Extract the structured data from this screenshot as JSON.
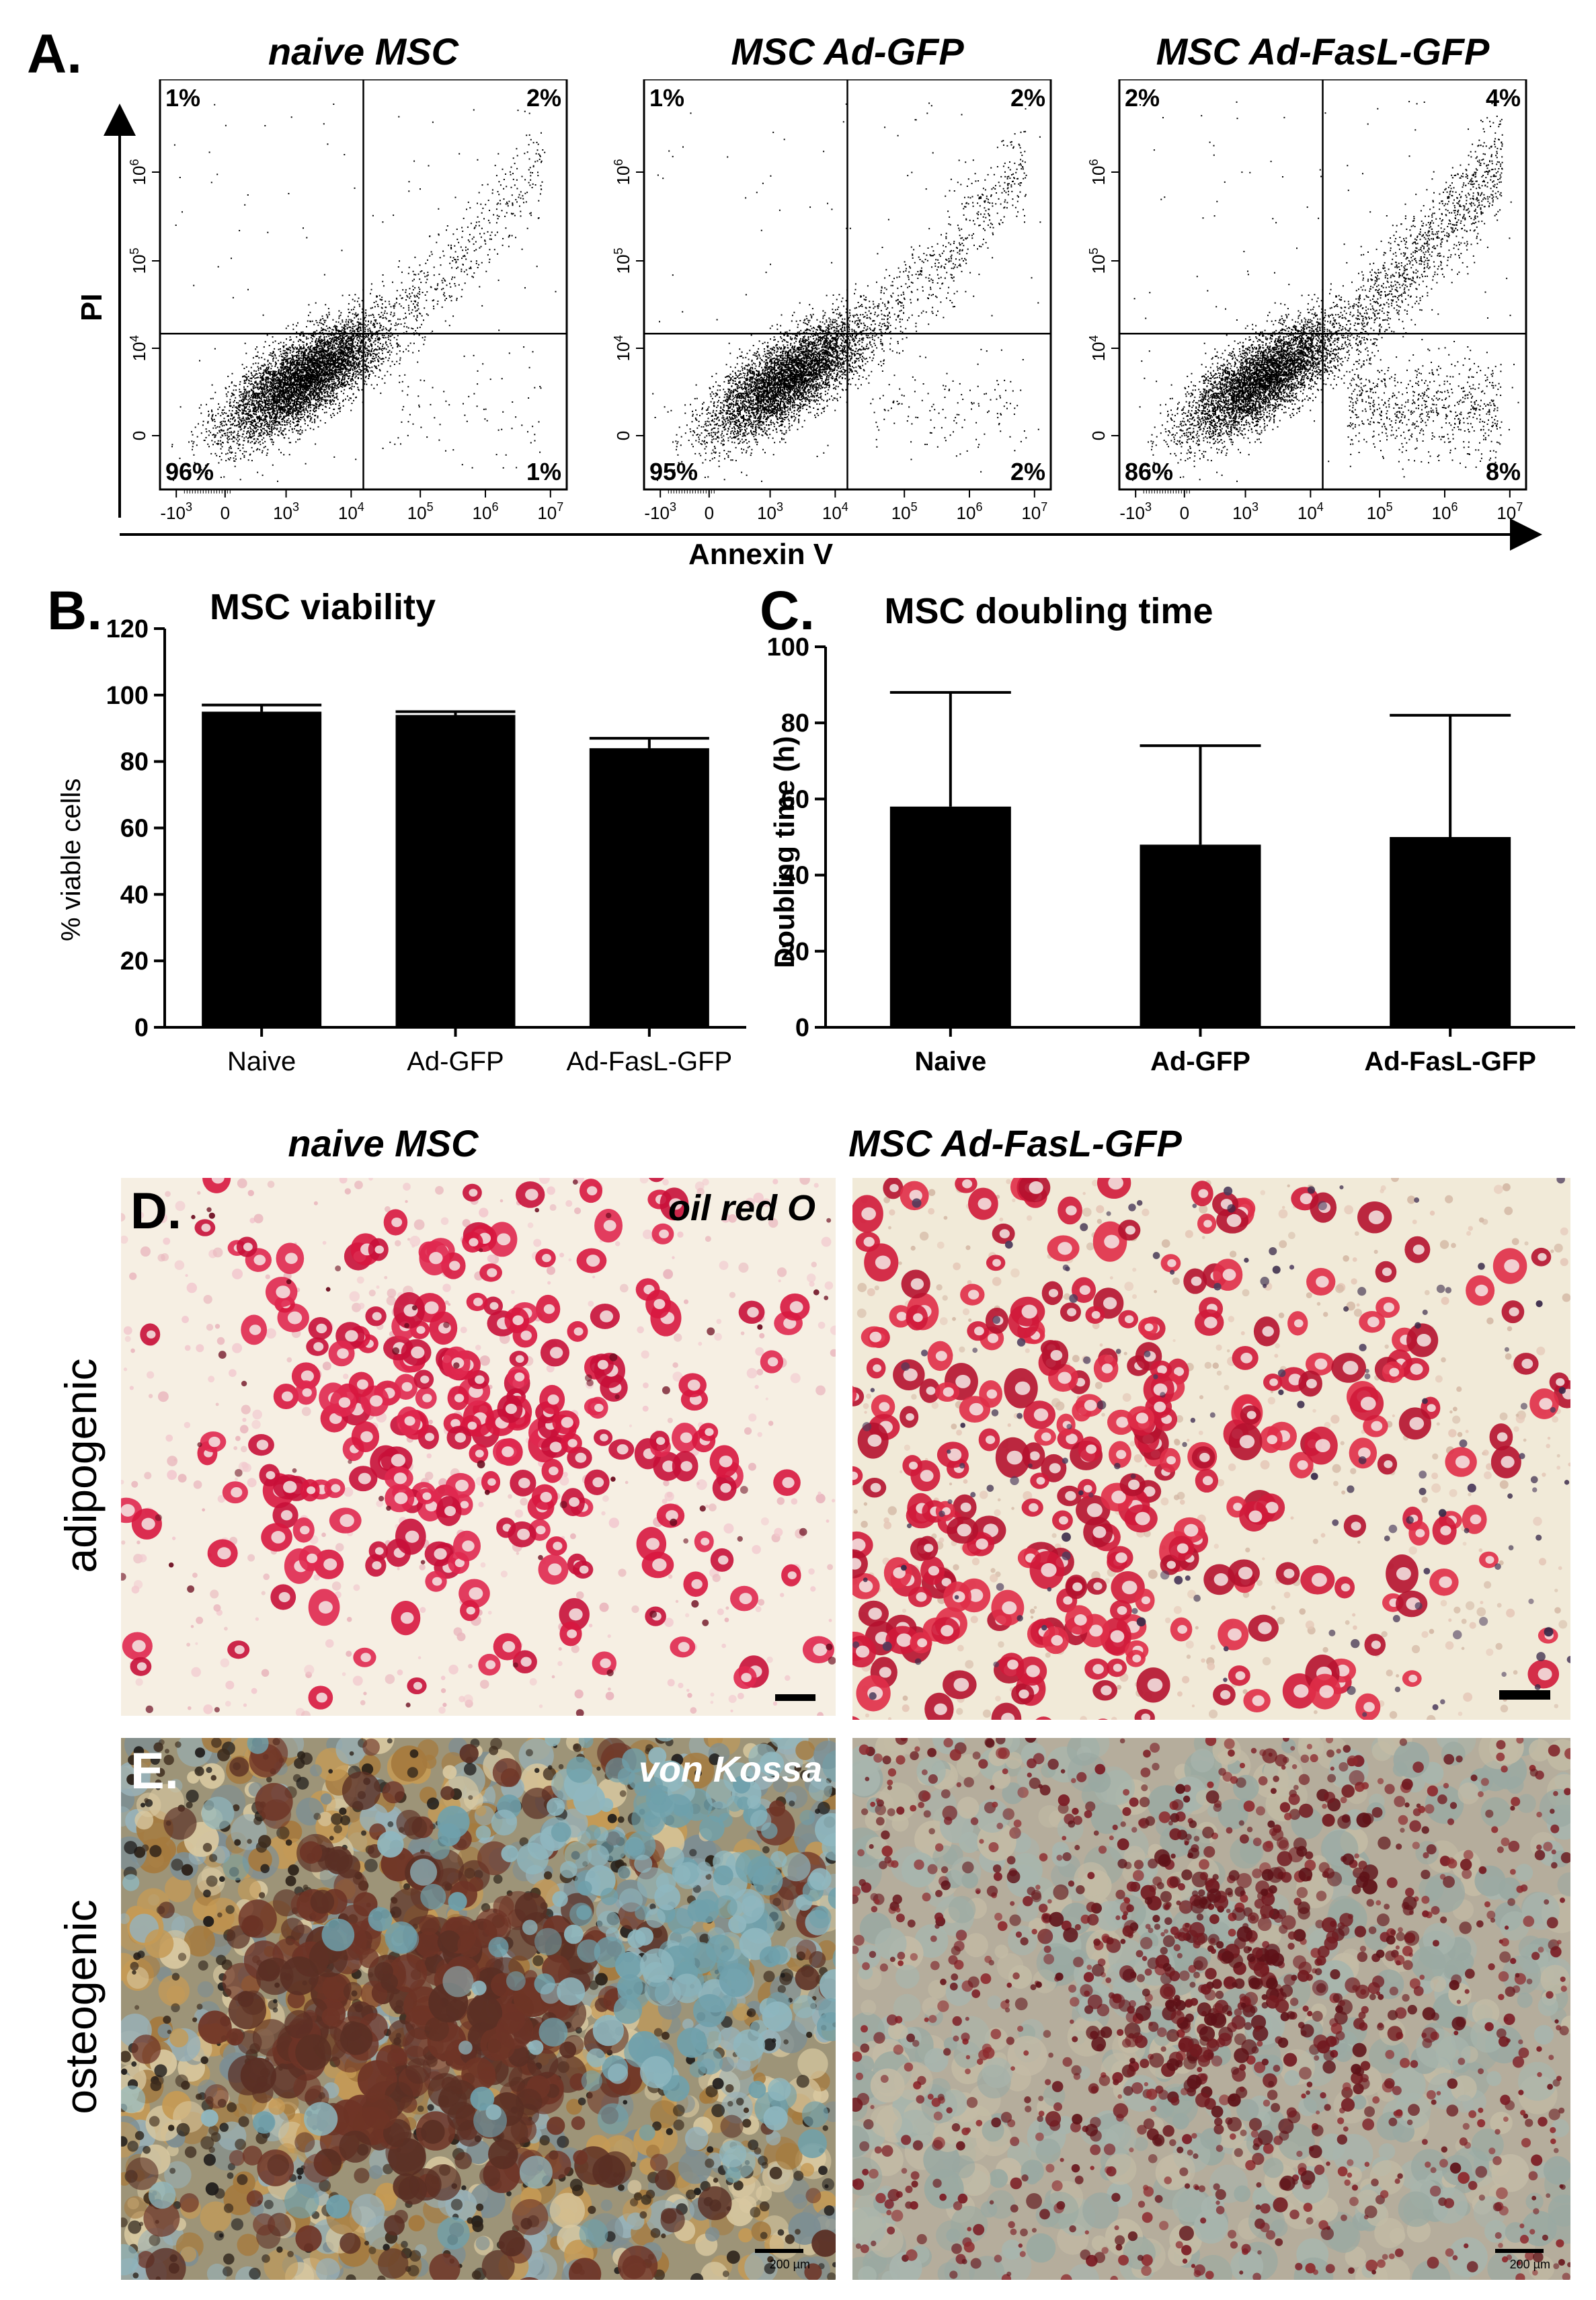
{
  "panel_a": {
    "letter": "A.",
    "y_axis_label": "PI",
    "x_axis_label": "Annexin V",
    "y_ticks": [
      "0",
      "10",
      "10",
      "10"
    ],
    "y_tick_exps": [
      "",
      "4",
      "5",
      "6"
    ],
    "x_ticks": [
      "-10",
      "0",
      "10",
      "10",
      "10",
      "10",
      "10"
    ],
    "x_tick_exps": [
      "3",
      "",
      "3",
      "4",
      "5",
      "6",
      "7"
    ],
    "plots": [
      {
        "title": "naive MSC",
        "ul": "1%",
        "ur": "2%",
        "ll": "96%",
        "lr": "1%"
      },
      {
        "title": "MSC Ad-GFP",
        "ul": "1%",
        "ur": "2%",
        "ll": "95%",
        "lr": "2%"
      },
      {
        "title": "MSC Ad-FasL-GFP",
        "ul": "2%",
        "ur": "4%",
        "ll": "86%",
        "lr": "8%"
      }
    ]
  },
  "chart_data": [
    {
      "type": "bar",
      "panel": "B.",
      "title": "MSC viability",
      "ylabel": "% viable cells",
      "xlabel": "",
      "categories": [
        "Naive",
        "Ad-GFP",
        "Ad-FasL-GFP"
      ],
      "values": [
        95,
        94,
        84
      ],
      "errors": [
        2,
        1,
        3
      ],
      "ylim": [
        0,
        120
      ],
      "yticks": [
        0,
        20,
        40,
        60,
        80,
        100,
        120
      ],
      "color": "#000000"
    },
    {
      "type": "bar",
      "panel": "C.",
      "title": "MSC doubling time",
      "ylabel": "Doubling time (h)",
      "xlabel": "",
      "categories": [
        "Naive",
        "Ad-GFP",
        "Ad-FasL-GFP"
      ],
      "values": [
        58,
        48,
        50
      ],
      "errors": [
        30,
        26,
        32
      ],
      "ylim": [
        0,
        100
      ],
      "yticks": [
        0,
        20,
        40,
        60,
        80,
        100
      ],
      "color": "#000000"
    }
  ],
  "panel_de": {
    "col_titles": [
      "naive MSC",
      "MSC Ad-FasL-GFP"
    ],
    "d_letter": "D.",
    "e_letter": "E.",
    "row_labels": [
      "adipogenic",
      "osteogenic"
    ],
    "stain_d": "oil red O",
    "stain_e": "von Kossa",
    "scale_label": "200 µm"
  }
}
